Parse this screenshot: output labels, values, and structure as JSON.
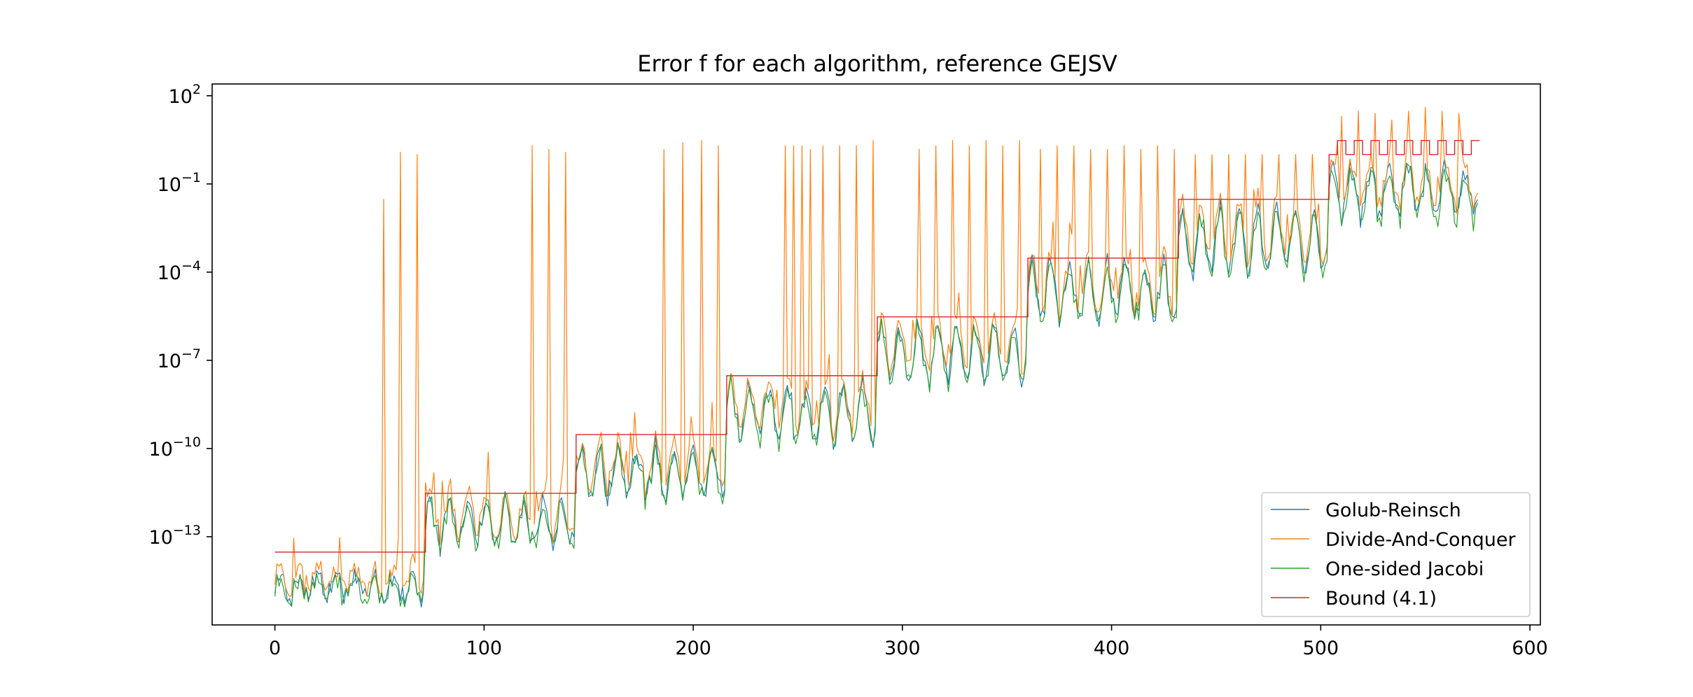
{
  "chart_data": {
    "type": "line",
    "title": "Error f for each algorithm, reference GEJSV",
    "xlabel": "",
    "ylabel": "",
    "xlim": [
      -30,
      605
    ],
    "ylim_log10": [
      -16.0,
      2.4
    ],
    "y_scale": "log",
    "x_ticks": [
      0,
      100,
      200,
      300,
      400,
      500,
      600
    ],
    "y_ticks": [
      {
        "base": "10",
        "exp": "2",
        "value": 100
      },
      {
        "base": "10",
        "exp": "−1",
        "value": 0.1
      },
      {
        "base": "10",
        "exp": "−4",
        "value": 0.0001
      },
      {
        "base": "10",
        "exp": "−7",
        "value": 1e-07
      },
      {
        "base": "10",
        "exp": "−10",
        "value": 1e-10
      },
      {
        "base": "10",
        "exp": "−13",
        "value": 1e-13
      }
    ],
    "grid": false,
    "legend_position": "lower-right",
    "n_points": 576,
    "groups": [
      {
        "x_start": 0,
        "x_end": 72,
        "bound": 3e-14,
        "base_level": 2e-15,
        "amplitude_decades": 0.5
      },
      {
        "x_start": 72,
        "x_end": 144,
        "bound": 3e-12,
        "base_level": 3e-13,
        "amplitude_decades": 0.9
      },
      {
        "x_start": 144,
        "x_end": 216,
        "bound": 3e-10,
        "base_level": 1.5e-11,
        "amplitude_decades": 1.0
      },
      {
        "x_start": 216,
        "x_end": 288,
        "bound": 3e-08,
        "base_level": 1.5e-09,
        "amplitude_decades": 1.1
      },
      {
        "x_start": 288,
        "x_end": 360,
        "bound": 3e-06,
        "base_level": 1.5e-07,
        "amplitude_decades": 1.2
      },
      {
        "x_start": 360,
        "x_end": 432,
        "bound": 0.0003,
        "base_level": 2e-05,
        "amplitude_decades": 1.2
      },
      {
        "x_start": 432,
        "x_end": 504,
        "bound": 0.03,
        "base_level": 0.001,
        "amplitude_decades": 1.4
      },
      {
        "x_start": 504,
        "x_end": 576,
        "bound": [
          1.0,
          3.0
        ],
        "base_level": 0.05,
        "amplitude_decades": 1.1
      }
    ],
    "dc_spike_x": [
      52,
      60,
      68,
      123,
      131,
      139,
      186,
      195,
      204,
      212,
      244,
      248,
      252,
      256,
      262,
      270,
      278,
      286,
      308,
      316,
      324,
      332,
      340,
      348,
      356,
      366,
      374,
      382,
      390,
      398,
      406,
      414,
      422,
      430,
      440,
      448,
      456,
      464,
      472,
      480,
      488,
      496,
      510,
      518,
      526,
      534,
      542,
      550,
      558,
      566
    ],
    "dc_spike_values": [
      0.03,
      1.2,
      1.0,
      2.0,
      1.5,
      1.2,
      1.5,
      2.5,
      3.0,
      2.0,
      2.0,
      2.0,
      2.0,
      1.5,
      2.0,
      2.0,
      2.0,
      3.0,
      1.5,
      2.0,
      3.0,
      2.0,
      3.0,
      2.0,
      3.0,
      1.5,
      2.0,
      2.0,
      1.5,
      1.5,
      2.0,
      1.5,
      2.0,
      1.5,
      1.0,
      1.0,
      1.0,
      1.0,
      1.0,
      1.0,
      1.0,
      1.0,
      20,
      30,
      25,
      15,
      30,
      40,
      30,
      25
    ],
    "series": [
      {
        "name": "Golub-Reinsch",
        "color": "#1f77b4",
        "offset_decades": 0.05,
        "seed": 11
      },
      {
        "name": "Divide-And-Conquer",
        "color": "#ff7f0e",
        "offset_decades": 0.35,
        "seed": 23
      },
      {
        "name": "One-sided Jacobi",
        "color": "#2ca02c",
        "offset_decades": -0.05,
        "seed": 37
      },
      {
        "name": "Bound (4.1)",
        "color": "#d62728",
        "kind": "bound"
      }
    ]
  },
  "legend": {
    "items": [
      {
        "label": "Golub-Reinsch",
        "color": "#1f77b4"
      },
      {
        "label": "Divide-And-Conquer",
        "color": "#ff7f0e"
      },
      {
        "label": "One-sided Jacobi",
        "color": "#2ca02c"
      },
      {
        "label": "Bound (4.1)",
        "color": "#d62728"
      }
    ]
  }
}
